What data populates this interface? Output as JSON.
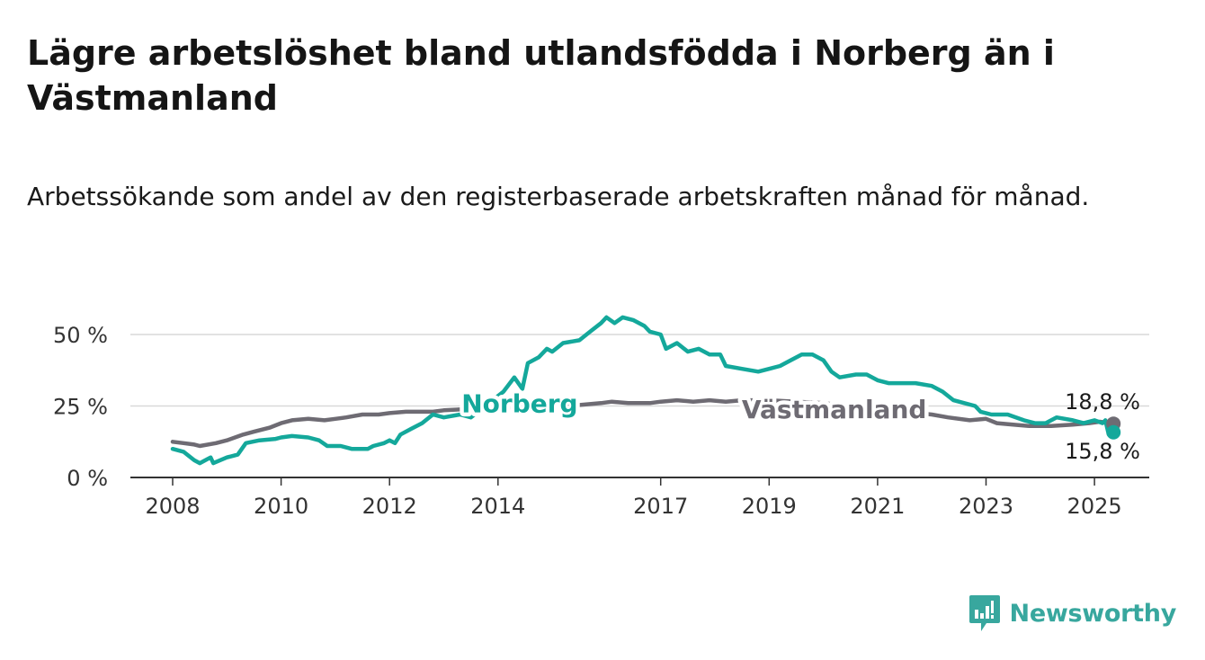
{
  "title": "Lägre arbetslöshet bland utlandsfödda i Norberg än i Västmanland",
  "subtitle": "Arbetssökande som andel av den registerbaserade arbetskraften månad för månad.",
  "brand": {
    "name": "Newsworthy",
    "icon": "newsworthy-logo-icon"
  },
  "colors": {
    "norberg": "#14a89b",
    "vastmanland": "#6e6b73",
    "grid": "#d9d9d9",
    "axis": "#333333"
  },
  "chart_data": {
    "type": "line",
    "ylim": [
      0,
      60
    ],
    "xlim": [
      2007.5,
      2026.0
    ],
    "y_ticks": [
      0,
      25,
      50
    ],
    "y_tick_labels": [
      "0 %",
      "25 %",
      "50 %"
    ],
    "x_ticks": [
      2008,
      2010,
      2012,
      2014,
      2017,
      2019,
      2021,
      2023,
      2025
    ],
    "x_tick_labels": [
      "2008",
      "2010",
      "2012",
      "2014",
      "2017",
      "2019",
      "2021",
      "2023",
      "2025"
    ],
    "grid": true,
    "series": [
      {
        "name": "Norberg",
        "color": "#14a89b",
        "end_label": "15,8 %",
        "points": [
          [
            2008.0,
            10
          ],
          [
            2008.2,
            9
          ],
          [
            2008.4,
            6
          ],
          [
            2008.5,
            5
          ],
          [
            2008.7,
            7
          ],
          [
            2008.75,
            5
          ],
          [
            2009.0,
            7
          ],
          [
            2009.2,
            8
          ],
          [
            2009.35,
            12
          ],
          [
            2009.6,
            13
          ],
          [
            2009.9,
            13.5
          ],
          [
            2010.0,
            14
          ],
          [
            2010.2,
            14.5
          ],
          [
            2010.5,
            14
          ],
          [
            2010.7,
            13
          ],
          [
            2010.85,
            11
          ],
          [
            2011.1,
            11
          ],
          [
            2011.3,
            10
          ],
          [
            2011.6,
            10
          ],
          [
            2011.7,
            11
          ],
          [
            2011.9,
            12
          ],
          [
            2012.0,
            13
          ],
          [
            2012.1,
            12
          ],
          [
            2012.2,
            15
          ],
          [
            2012.4,
            17
          ],
          [
            2012.6,
            19
          ],
          [
            2012.8,
            22
          ],
          [
            2013.0,
            21
          ],
          [
            2013.3,
            22
          ],
          [
            2013.5,
            21
          ],
          [
            2014.1,
            30
          ],
          [
            2014.3,
            35
          ],
          [
            2014.45,
            31
          ],
          [
            2014.55,
            40
          ],
          [
            2014.75,
            42
          ],
          [
            2014.9,
            45
          ],
          [
            2015.0,
            44
          ],
          [
            2015.2,
            47
          ],
          [
            2015.5,
            48
          ],
          [
            2015.7,
            51
          ],
          [
            2015.9,
            54
          ],
          [
            2016.0,
            56
          ],
          [
            2016.15,
            54
          ],
          [
            2016.3,
            56
          ],
          [
            2016.5,
            55
          ],
          [
            2016.7,
            53
          ],
          [
            2016.8,
            51
          ],
          [
            2017.0,
            50
          ],
          [
            2017.1,
            45
          ],
          [
            2017.3,
            47
          ],
          [
            2017.5,
            44
          ],
          [
            2017.7,
            45
          ],
          [
            2017.9,
            43
          ],
          [
            2018.1,
            43
          ],
          [
            2018.2,
            39
          ],
          [
            2018.5,
            38
          ],
          [
            2018.8,
            37
          ],
          [
            2019.0,
            38
          ],
          [
            2019.2,
            39
          ],
          [
            2019.4,
            41
          ],
          [
            2019.6,
            43
          ],
          [
            2019.8,
            43
          ],
          [
            2020.0,
            41
          ],
          [
            2020.15,
            37
          ],
          [
            2020.3,
            35
          ],
          [
            2020.6,
            36
          ],
          [
            2020.8,
            36
          ],
          [
            2021.0,
            34
          ],
          [
            2021.2,
            33
          ],
          [
            2021.5,
            33
          ],
          [
            2021.7,
            33
          ],
          [
            2022.0,
            32
          ],
          [
            2022.2,
            30
          ],
          [
            2022.4,
            27
          ],
          [
            2022.6,
            26
          ],
          [
            2022.8,
            25
          ],
          [
            2022.9,
            23
          ],
          [
            2023.1,
            22
          ],
          [
            2023.4,
            22
          ],
          [
            2023.7,
            20
          ],
          [
            2023.9,
            19
          ],
          [
            2024.1,
            19
          ],
          [
            2024.3,
            21
          ],
          [
            2024.6,
            20
          ],
          [
            2024.8,
            19
          ],
          [
            2025.0,
            20
          ],
          [
            2025.15,
            19
          ],
          [
            2025.2,
            20
          ],
          [
            2025.25,
            16
          ],
          [
            2025.3,
            17.5
          ],
          [
            2025.35,
            15.8
          ]
        ]
      },
      {
        "name": "Västmanland",
        "color": "#6e6b73",
        "end_label": "18,8 %",
        "points": [
          [
            2008.0,
            12.5
          ],
          [
            2008.2,
            12
          ],
          [
            2008.4,
            11.5
          ],
          [
            2008.5,
            11
          ],
          [
            2008.8,
            12
          ],
          [
            2009.0,
            13
          ],
          [
            2009.3,
            15
          ],
          [
            2009.5,
            16
          ],
          [
            2009.8,
            17.5
          ],
          [
            2010.0,
            19
          ],
          [
            2010.2,
            20
          ],
          [
            2010.5,
            20.5
          ],
          [
            2010.8,
            20
          ],
          [
            2011.0,
            20.5
          ],
          [
            2011.2,
            21
          ],
          [
            2011.5,
            22
          ],
          [
            2011.8,
            22
          ],
          [
            2012.0,
            22.5
          ],
          [
            2012.3,
            23
          ],
          [
            2012.6,
            23
          ],
          [
            2012.8,
            23
          ],
          [
            2013.0,
            23.5
          ],
          [
            2013.5,
            24
          ],
          [
            2014.0,
            24.5
          ],
          [
            2014.5,
            24.5
          ],
          [
            2015.0,
            24.5
          ],
          [
            2015.3,
            25
          ],
          [
            2015.6,
            25.5
          ],
          [
            2015.9,
            26
          ],
          [
            2016.1,
            26.5
          ],
          [
            2016.4,
            26
          ],
          [
            2016.8,
            26
          ],
          [
            2017.0,
            26.5
          ],
          [
            2017.3,
            27
          ],
          [
            2017.6,
            26.5
          ],
          [
            2017.9,
            27
          ],
          [
            2018.2,
            26.5
          ],
          [
            2018.5,
            27
          ],
          [
            2019.0,
            27
          ],
          [
            2019.5,
            26.5
          ],
          [
            2020.0,
            26
          ],
          [
            2020.5,
            25
          ],
          [
            2021.0,
            24
          ],
          [
            2021.5,
            23
          ],
          [
            2022.0,
            22
          ],
          [
            2022.3,
            21
          ],
          [
            2022.7,
            20
          ],
          [
            2023.0,
            20.5
          ],
          [
            2023.2,
            19
          ],
          [
            2023.5,
            18.5
          ],
          [
            2023.8,
            18
          ],
          [
            2024.2,
            18
          ],
          [
            2024.6,
            18.5
          ],
          [
            2024.9,
            19
          ],
          [
            2025.1,
            19.5
          ],
          [
            2025.35,
            18.8
          ]
        ]
      }
    ],
    "inline_labels": [
      {
        "text": "Norberg",
        "series": "Norberg",
        "x": 2014.4,
        "y": 26.3
      },
      {
        "text": "Västmanland",
        "series": "Västmanland",
        "x": 2020.2,
        "y": 24.2
      }
    ]
  }
}
